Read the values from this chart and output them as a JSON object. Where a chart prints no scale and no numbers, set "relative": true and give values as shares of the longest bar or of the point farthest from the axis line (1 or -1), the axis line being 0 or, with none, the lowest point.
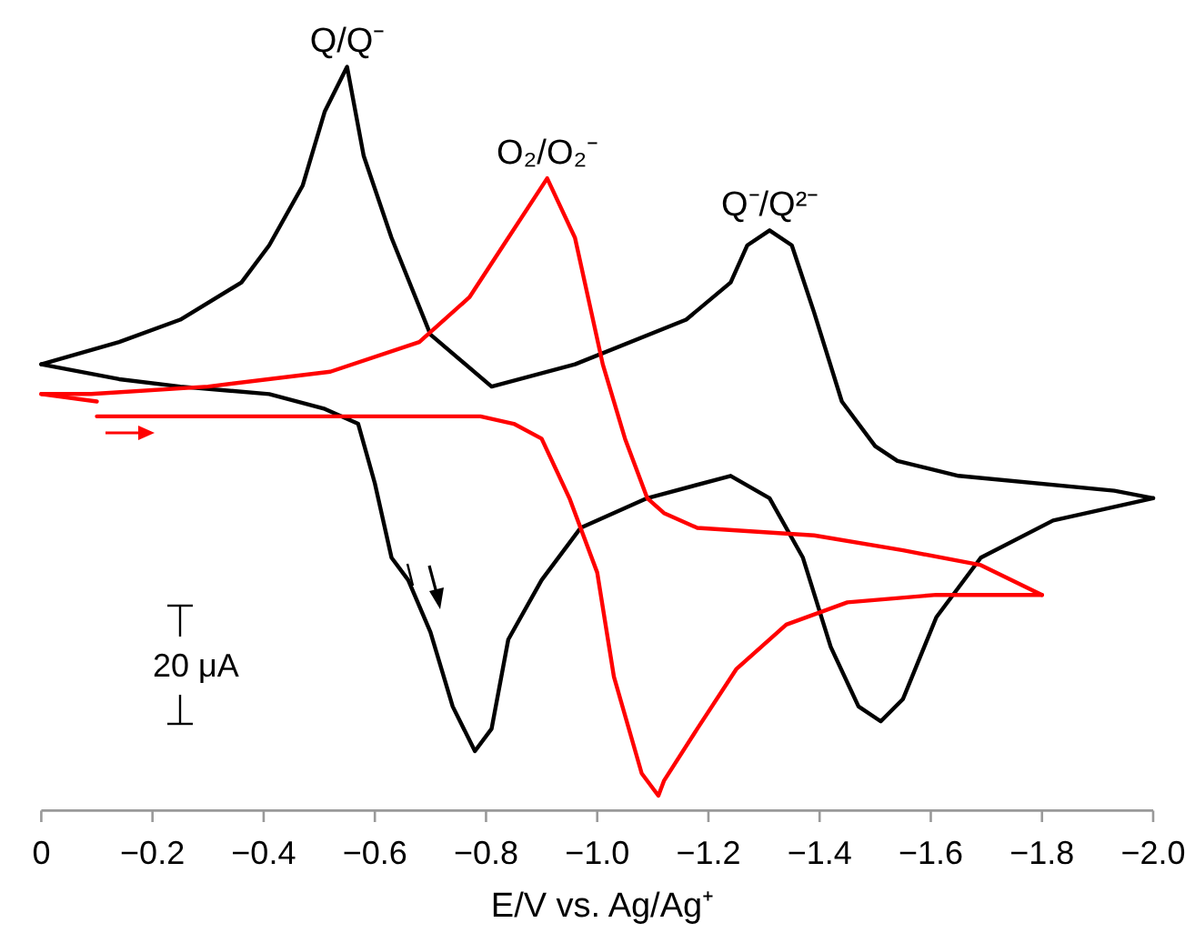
{
  "chart_data": {
    "type": "line",
    "relative": true,
    "xlabel": "E/V vs. Ag/Ag⁺",
    "xlim": [
      0,
      -2
    ],
    "xticks": [
      0,
      {
        "value": -0.2,
        "label": "−0.2"
      },
      {
        "value": -0.4,
        "label": "−0.4"
      },
      {
        "value": -0.6,
        "label": "−0.6"
      },
      {
        "value": -0.8,
        "label": "−0.8"
      },
      {
        "value": -1,
        "label": "−1.0"
      },
      {
        "value": -1.2,
        "label": "−1.2"
      },
      {
        "value": -1.4,
        "label": "−1.4"
      },
      {
        "value": -1.6,
        "label": "−1.6"
      },
      {
        "value": -1.8,
        "label": "−1.8"
      },
      {
        "value": -2,
        "label": "−2.0"
      }
    ],
    "tick_labels": "x",
    "line_style": "solid",
    "series": [
      {
        "color": "#000000",
        "x": [
          0,
          -0.14,
          -0.25,
          -0.41,
          -0.51,
          -0.57,
          -0.6,
          -0.63,
          -0.66,
          -0.7,
          -0.74,
          -0.78,
          -0.81,
          -0.84,
          -0.9,
          -0.97,
          -1.09,
          -1.24,
          -1.31,
          -1.37,
          -1.42,
          -1.47,
          -1.51,
          -1.55,
          -1.61,
          -1.69,
          -1.82,
          -2
        ],
        "values": [
          0.6,
          0.58,
          0.57,
          0.56,
          0.54,
          0.52,
          0.44,
          0.34,
          0.31,
          0.24,
          0.14,
          0.08,
          0.11,
          0.23,
          0.31,
          0.38,
          0.42,
          0.45,
          0.42,
          0.34,
          0.22,
          0.14,
          0.12,
          0.15,
          0.26,
          0.34,
          0.39,
          0.42
        ]
      },
      {
        "color": "#000000",
        "x": [
          -2,
          -1.93,
          -1.65,
          -1.54,
          -1.5,
          -1.44,
          -1.39,
          -1.35,
          -1.31,
          -1.27,
          -1.24,
          -1.16,
          -0.96,
          -0.81,
          -0.7,
          -0.63,
          -0.58,
          -0.55,
          -0.51,
          -0.47,
          -0.41,
          -0.36,
          -0.25,
          -0.14,
          0
        ],
        "values": [
          0.42,
          0.43,
          0.45,
          0.47,
          0.49,
          0.55,
          0.67,
          0.76,
          0.78,
          0.76,
          0.71,
          0.66,
          0.6,
          0.57,
          0.64,
          0.77,
          0.88,
          1,
          0.94,
          0.84,
          0.76,
          0.71,
          0.66,
          0.63,
          0.6
        ]
      },
      {
        "color": "#ff0000",
        "x": [
          -0.1,
          -0.36,
          -0.79,
          -0.85,
          -0.9,
          -0.95,
          -1,
          -1.03,
          -1.08,
          -1.11,
          -1.12,
          -1.18,
          -1.25,
          -1.34,
          -1.45,
          -1.61,
          -1.8
        ],
        "values": [
          0.53,
          0.53,
          0.53,
          0.52,
          0.5,
          0.42,
          0.32,
          0.18,
          0.05,
          0.02,
          0.04,
          0.11,
          0.19,
          0.25,
          0.28,
          0.29,
          0.29
        ]
      },
      {
        "color": "#ff0000",
        "x": [
          -1.8,
          -1.69,
          -1.55,
          -1.39,
          -1.18,
          -1.12,
          -1.09,
          -1.05,
          -1.01,
          -0.96,
          -0.91,
          -0.84,
          -0.77,
          -0.68,
          -0.52,
          -0.3,
          -0.09,
          0
        ],
        "values": [
          0.29,
          0.33,
          0.35,
          0.37,
          0.38,
          0.4,
          0.42,
          0.5,
          0.6,
          0.77,
          0.85,
          0.77,
          0.69,
          0.63,
          0.59,
          0.57,
          0.56,
          0.56
        ]
      },
      {
        "color": "#ff0000",
        "x": [
          0,
          -0.1
        ],
        "values": [
          0.56,
          0.55
        ]
      }
    ],
    "annotations": [
      {
        "text": "Q/Q⁻",
        "x": -0.55,
        "y": 1
      },
      {
        "text": "O₂/O₂⁻",
        "x": -0.91,
        "y": 0.85
      },
      {
        "text": "Q⁻/Q²⁻",
        "x": -1.31,
        "y": 0.78
      },
      "20 μA"
    ]
  }
}
